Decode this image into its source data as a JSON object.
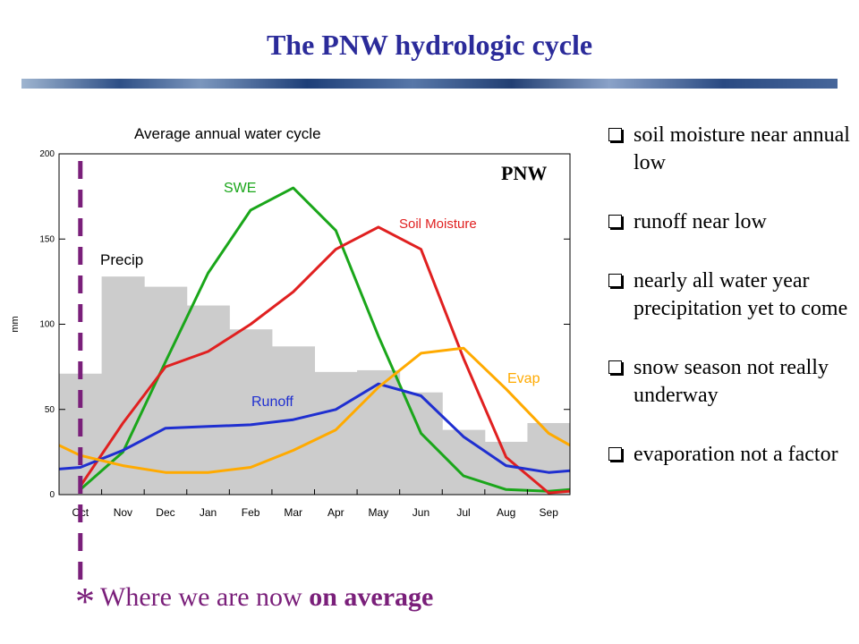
{
  "slide": {
    "title": "The PNW hydrologic cycle",
    "note_star": "*",
    "note_text": "Where we are now ",
    "note_bold": "on average",
    "note_color": "#7a1f7a"
  },
  "bullets": [
    "soil moisture near annual low",
    "runoff near low",
    "nearly all water year precipitation yet to come",
    "snow season not really underway",
    "evaporation not a factor"
  ],
  "chart_data": {
    "type": "line",
    "title": "Average annual water cycle",
    "region_label": "PNW",
    "ylabel": "mm",
    "ylim": [
      0,
      200
    ],
    "yticks": [
      0,
      50,
      100,
      150,
      200
    ],
    "categories": [
      "Oct",
      "Nov",
      "Dec",
      "Jan",
      "Feb",
      "Mar",
      "Apr",
      "May",
      "Jun",
      "Jul",
      "Aug",
      "Sep"
    ],
    "precip": {
      "name": "Precip",
      "color": "#cccccc",
      "values": [
        71,
        128,
        122,
        111,
        97,
        87,
        72,
        73,
        60,
        38,
        31,
        42
      ]
    },
    "series": [
      {
        "name": "SWE",
        "color": "#1aa61a",
        "x": [
          0,
          1,
          2,
          3,
          4,
          5,
          6,
          7,
          8,
          9,
          10,
          11,
          11.5
        ],
        "values": [
          3,
          25,
          78,
          130,
          167,
          180,
          155,
          93,
          36,
          11,
          3,
          2,
          3
        ]
      },
      {
        "name": "Soil Moisture",
        "color": "#e02020",
        "x": [
          0,
          1,
          2,
          3,
          4,
          5,
          6,
          7,
          8,
          9,
          10,
          11,
          11.5
        ],
        "values": [
          5,
          42,
          75,
          84,
          100,
          119,
          144,
          157,
          144,
          80,
          22,
          1,
          2
        ]
      },
      {
        "name": "Runoff",
        "color": "#1f2fd0",
        "x": [
          -0.5,
          0,
          1,
          2,
          3,
          4,
          5,
          6,
          7,
          8,
          9,
          10,
          11,
          11.5
        ],
        "values": [
          15,
          16,
          26,
          39,
          40,
          41,
          44,
          50,
          65,
          58,
          34,
          17,
          13,
          14
        ]
      },
      {
        "name": "Evap",
        "color": "#ffaa00",
        "x": [
          -0.5,
          0,
          1,
          2,
          3,
          4,
          5,
          6,
          7,
          8,
          9,
          10,
          11,
          11.5
        ],
        "values": [
          29,
          23,
          17,
          13,
          13,
          16,
          26,
          38,
          63,
          83,
          86,
          62,
          36,
          29
        ]
      }
    ],
    "marker": {
      "month": "Oct",
      "color": "#7a1f7a"
    },
    "grid": false,
    "legend": "inline labels"
  }
}
